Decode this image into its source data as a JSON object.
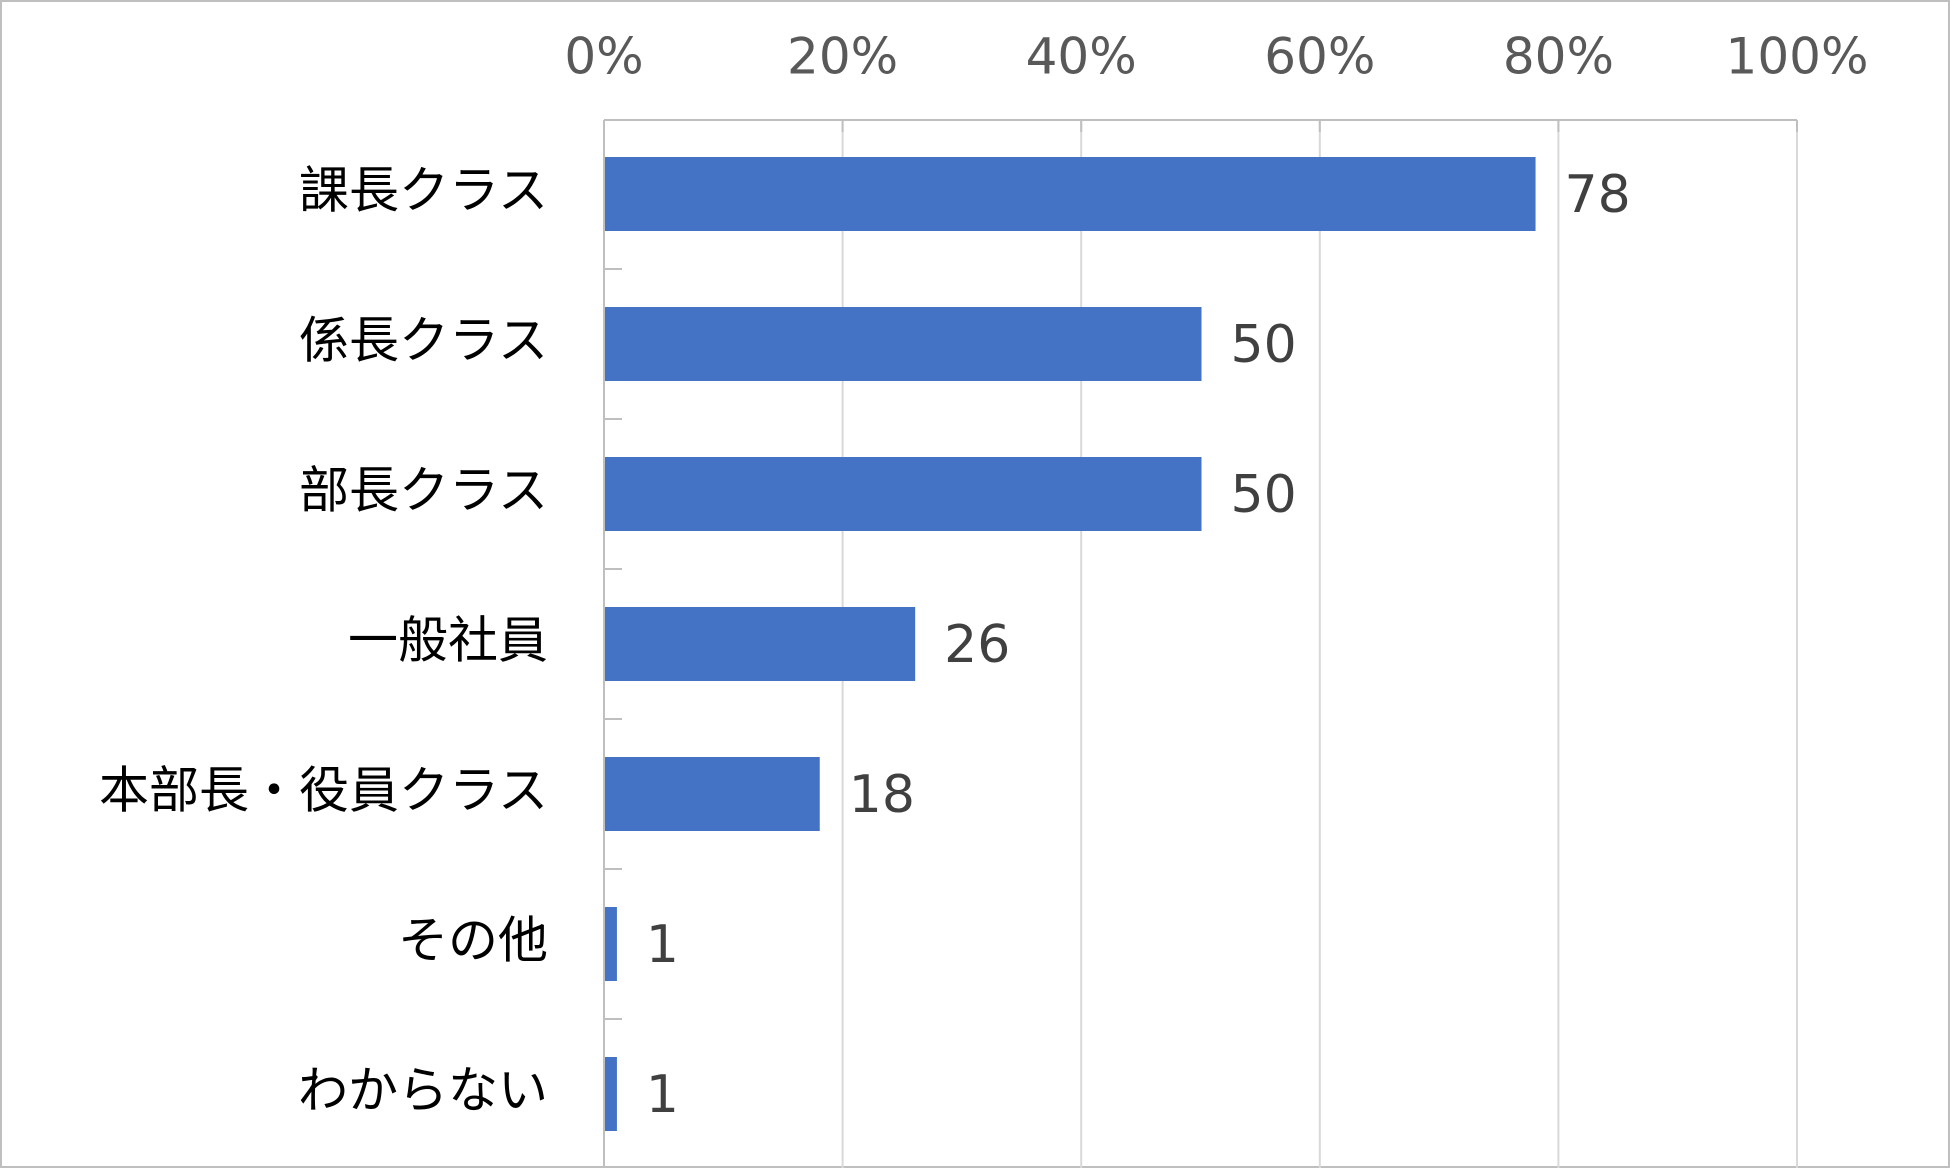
{
  "chart_data": {
    "type": "bar",
    "orientation": "horizontal",
    "categories": [
      "課長クラス",
      "係長クラス",
      "部長クラス",
      "一般社員",
      "本部長・役員クラス",
      "その他",
      "わからない"
    ],
    "values": [
      78,
      50,
      50,
      26,
      18,
      1,
      1
    ],
    "data_labels": [
      "78",
      "50",
      "50",
      "26",
      "18",
      "1",
      "1"
    ],
    "x_ticks": [
      "0%",
      "20%",
      "40%",
      "60%",
      "80%",
      "100%"
    ],
    "xlim": [
      0,
      100
    ],
    "x_axis_position": "top",
    "grid": true,
    "legend": "none",
    "title": "",
    "xlabel": "",
    "ylabel": "",
    "colors": {
      "bar": "#4472C4",
      "grid": "#d9d9d9",
      "axis": "#bfbfbf",
      "tick_text": "#595959",
      "category_text": "#000000",
      "data_label_text": "#404040",
      "frame": "#bfbfbf"
    }
  }
}
